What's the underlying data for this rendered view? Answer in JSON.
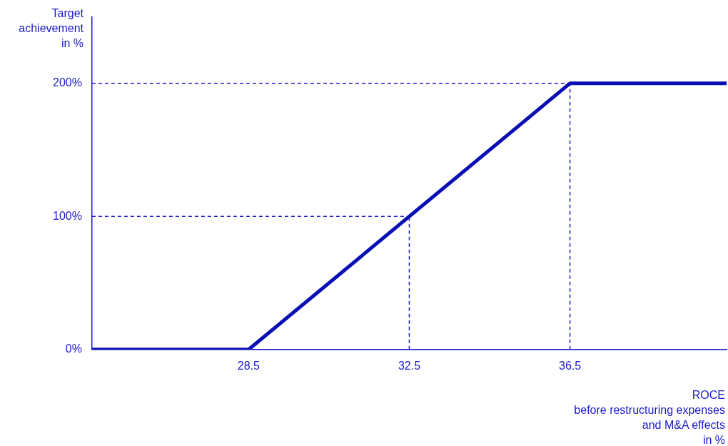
{
  "chart_data": {
    "type": "line",
    "ylabel": "Target\nachievement\nin %",
    "xlabel": "ROCE\nbefore restructuring expenses\nand M&A effects\nin %",
    "x": [
      24.6,
      28.5,
      36.5,
      40.4
    ],
    "series": [
      {
        "color": "#0a0fb5",
        "values": [
          0,
          0,
          200,
          200
        ]
      }
    ],
    "xlim": [
      24.6,
      40.4
    ],
    "xticks": [
      28.5,
      32.5,
      36.5
    ],
    "ylim": [
      0,
      250
    ],
    "yticks": [
      {
        "value": 0,
        "label": "0%"
      },
      {
        "value": 100,
        "label": "100%"
      },
      {
        "value": 200,
        "label": "200%"
      }
    ],
    "ref_lines": [
      {
        "axis": "y",
        "value": 100,
        "color": "#1a1ac8",
        "line_style": "dashed"
      },
      {
        "axis": "y",
        "value": 200,
        "color": "#1a1ac8",
        "line_style": "dashed"
      },
      {
        "axis": "x",
        "value": 32.5,
        "color": "#1a1ac8",
        "line_style": "dashed"
      },
      {
        "axis": "x",
        "value": 36.5,
        "color": "#1a1ac8",
        "line_style": "dashed"
      }
    ],
    "grid": false,
    "legend": false,
    "marker": "none",
    "line_style": "solid"
  }
}
